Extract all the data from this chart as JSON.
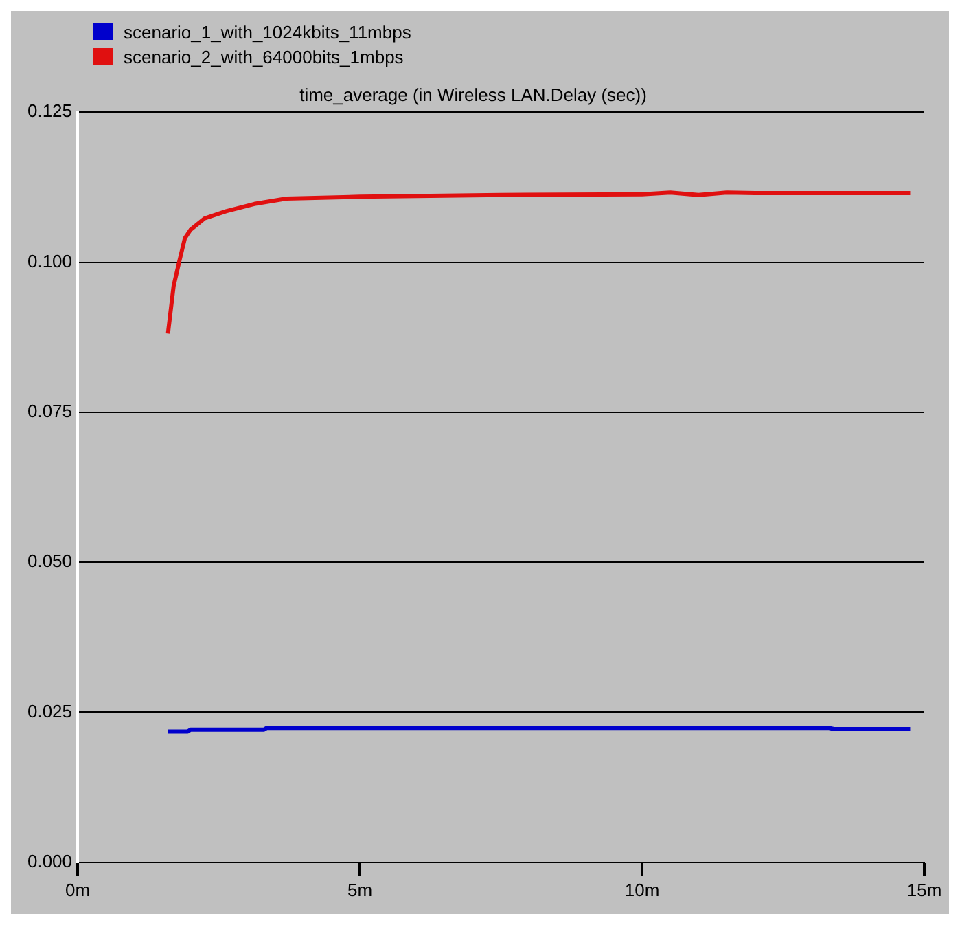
{
  "chart_data": {
    "type": "line",
    "title": "time_average (in Wireless LAN.Delay (sec))",
    "xlim": [
      0,
      15
    ],
    "xticks": [
      {
        "value": 0,
        "label": "0m"
      },
      {
        "value": 5,
        "label": "5m"
      },
      {
        "value": 10,
        "label": "10m"
      },
      {
        "value": 15,
        "label": "15m"
      }
    ],
    "ylim": [
      0,
      0.125
    ],
    "yticks": [
      {
        "value": 0,
        "label": "0.000"
      },
      {
        "value": 0.025,
        "label": "0.025"
      },
      {
        "value": 0.05,
        "label": "0.050"
      },
      {
        "value": 0.075,
        "label": "0.075"
      },
      {
        "value": 0.1,
        "label": "0.100"
      },
      {
        "value": 0.125,
        "label": "0.125"
      }
    ],
    "grid": "y",
    "legend": "top left",
    "marker": "none",
    "line_style": "solid",
    "series": [
      {
        "name": "scenario_1_with_1024kbits_11mbps",
        "color": "#0000cc",
        "x": [
          1.6,
          1.95,
          2.0,
          3.3,
          3.35,
          13.3,
          13.4,
          14.75
        ],
        "values": [
          0.0218,
          0.0218,
          0.0221,
          0.0221,
          0.0224,
          0.0224,
          0.0222,
          0.0222
        ]
      },
      {
        "name": "scenario_2_with_64000bits_1mbps",
        "color": "#e01010",
        "x": [
          1.6,
          1.7,
          1.8,
          1.9,
          2.0,
          2.25,
          2.63,
          3.13,
          3.7,
          5.0,
          7.5,
          10.0,
          10.5,
          11.0,
          11.5,
          12.0,
          14.75
        ],
        "values": [
          0.0881,
          0.096,
          0.1001,
          0.104,
          0.1054,
          0.1073,
          0.1085,
          0.1097,
          0.1106,
          0.1109,
          0.1112,
          0.1113,
          0.1116,
          0.1112,
          0.1116,
          0.1115,
          0.1115
        ]
      }
    ]
  }
}
